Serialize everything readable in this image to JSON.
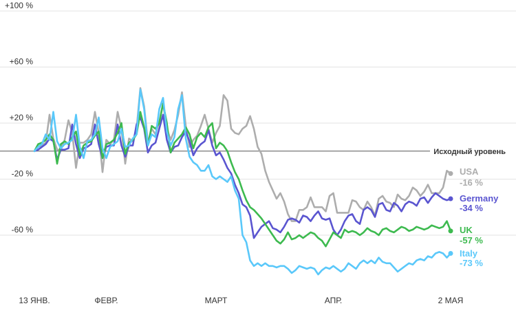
{
  "chart_data": {
    "type": "line",
    "title": "",
    "xlabel": "",
    "ylabel": "",
    "ylim": [
      -100,
      100
    ],
    "y_ticks": [
      {
        "value": 100,
        "label": "+100 %"
      },
      {
        "value": 60,
        "label": "+60 %"
      },
      {
        "value": 20,
        "label": "+20 %"
      },
      {
        "value": -20,
        "label": "-20 %"
      },
      {
        "value": -60,
        "label": "-60 %"
      }
    ],
    "x_ticks": [
      {
        "day": 0,
        "label": "13 ЯНВ."
      },
      {
        "day": 19,
        "label": "ФЕВР."
      },
      {
        "day": 48,
        "label": "МАРТ"
      },
      {
        "day": 79,
        "label": "АПР."
      },
      {
        "day": 110,
        "label": "2 МАЯ"
      }
    ],
    "x_range_days": [
      0,
      110
    ],
    "baseline": {
      "value": 0,
      "label": "Исходный уровень"
    },
    "grid": true,
    "series": [
      {
        "name": "USA",
        "end_label": "-16 %",
        "color": "#adadad",
        "values": [
          0,
          3,
          4,
          6,
          26,
          9,
          1,
          1,
          8,
          22,
          13,
          -12,
          6,
          6,
          8,
          12,
          28,
          13,
          -15,
          8,
          5,
          8,
          28,
          16,
          -9,
          9,
          7,
          16,
          45,
          32,
          6,
          16,
          12,
          21,
          34,
          16,
          8,
          15,
          26,
          42,
          18,
          3,
          8,
          11,
          18,
          26,
          16,
          6,
          13,
          18,
          40,
          36,
          16,
          13,
          12,
          16,
          18,
          25,
          16,
          3,
          -2,
          -14,
          -22,
          -28,
          -34,
          -30,
          -36,
          -45,
          -50,
          -50,
          -42,
          -42,
          -40,
          -33,
          -40,
          -40,
          -40,
          -43,
          -32,
          -30,
          -44,
          -44,
          -44,
          -44,
          -35,
          -36,
          -40,
          -42,
          -36,
          -40,
          -46,
          -34,
          -32,
          -36,
          -37,
          -40,
          -31,
          -34,
          -35,
          -32,
          -26,
          -28,
          -32,
          -29,
          -24,
          -30,
          -30,
          -30,
          -26,
          -14,
          -16
        ],
        "marker": true
      },
      {
        "name": "Germany",
        "end_label": "-34 %",
        "color": "#5a55d0",
        "values": [
          0,
          1,
          3,
          5,
          9,
          7,
          -6,
          1,
          1,
          2,
          19,
          5,
          -5,
          2,
          3,
          5,
          19,
          5,
          -5,
          3,
          4,
          4,
          19,
          4,
          -4,
          4,
          4,
          19,
          24,
          16,
          -1,
          4,
          6,
          16,
          26,
          8,
          -1,
          3,
          4,
          10,
          14,
          7,
          -3,
          2,
          5,
          7,
          15,
          4,
          -3,
          -1,
          -6,
          -12,
          -16,
          -24,
          -30,
          -38,
          -40,
          -46,
          -62,
          -58,
          -54,
          -52,
          -50,
          -55,
          -56,
          -58,
          -54,
          -49,
          -48,
          -49,
          -51,
          -46,
          -47,
          -50,
          -46,
          -43,
          -48,
          -49,
          -48,
          -56,
          -60,
          -56,
          -50,
          -46,
          -45,
          -50,
          -52,
          -42,
          -40,
          -42,
          -47,
          -38,
          -37,
          -42,
          -43,
          -37,
          -39,
          -43,
          -38,
          -36,
          -37,
          -39,
          -34,
          -33,
          -37,
          -33,
          -30,
          -32,
          -34,
          -35,
          -34
        ],
        "marker": true
      },
      {
        "name": "UK",
        "end_label": "-57 %",
        "color": "#3dba4f",
        "values": [
          0,
          5,
          6,
          8,
          12,
          8,
          -9,
          5,
          7,
          5,
          10,
          14,
          -3,
          4,
          6,
          7,
          11,
          14,
          -5,
          5,
          6,
          8,
          13,
          20,
          -2,
          6,
          8,
          12,
          28,
          17,
          4,
          18,
          16,
          20,
          34,
          20,
          -1,
          6,
          9,
          12,
          17,
          12,
          2,
          10,
          13,
          10,
          17,
          20,
          2,
          6,
          4,
          0,
          -8,
          -15,
          -20,
          -28,
          -35,
          -40,
          -42,
          -45,
          -48,
          -52,
          -56,
          -60,
          -64,
          -66,
          -63,
          -58,
          -63,
          -62,
          -60,
          -62,
          -60,
          -58,
          -59,
          -62,
          -64,
          -68,
          -63,
          -58,
          -60,
          -62,
          -56,
          -58,
          -57,
          -58,
          -60,
          -58,
          -55,
          -57,
          -58,
          -60,
          -56,
          -55,
          -57,
          -58,
          -56,
          -54,
          -55,
          -57,
          -56,
          -54,
          -55,
          -56,
          -55,
          -53,
          -54,
          -55,
          -54,
          -50,
          -57
        ],
        "marker": true
      },
      {
        "name": "Italy",
        "end_label": "-73 %",
        "color": "#5ac8fa",
        "values": [
          0,
          3,
          5,
          12,
          8,
          28,
          7,
          2,
          5,
          6,
          8,
          26,
          3,
          -5,
          7,
          8,
          12,
          24,
          2,
          -5,
          3,
          5,
          7,
          16,
          3,
          4,
          9,
          12,
          44,
          30,
          4,
          12,
          10,
          30,
          38,
          14,
          4,
          10,
          30,
          40,
          9,
          -4,
          -8,
          -10,
          -14,
          -14,
          -10,
          -18,
          -20,
          -18,
          -20,
          -22,
          -18,
          -28,
          -34,
          -60,
          -65,
          -78,
          -82,
          -80,
          -82,
          -80,
          -82,
          -82,
          -83,
          -82,
          -82,
          -84,
          -87,
          -85,
          -82,
          -83,
          -84,
          -83,
          -84,
          -88,
          -85,
          -83,
          -84,
          -82,
          -84,
          -86,
          -84,
          -80,
          -82,
          -84,
          -80,
          -78,
          -80,
          -78,
          -80,
          -76,
          -79,
          -80,
          -80,
          -83,
          -86,
          -84,
          -82,
          -80,
          -81,
          -78,
          -77,
          -78,
          -75,
          -76,
          -73,
          -72,
          -73,
          -76,
          -73
        ],
        "marker": true
      }
    ]
  }
}
